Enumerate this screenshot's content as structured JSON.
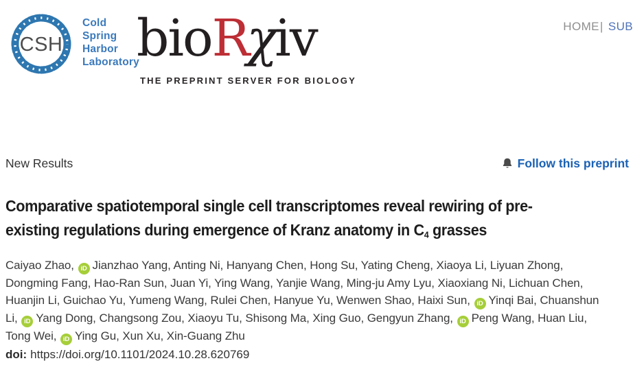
{
  "header": {
    "csh_logo": {
      "monogram": "CSH",
      "label_lines": [
        "Cold",
        "Spring",
        "Harbor",
        "Laboratory"
      ]
    },
    "biorxiv_logo": {
      "bio": "bio",
      "r": "R",
      "chi": "χ",
      "iv": "iv",
      "tagline": "THE PREPRINT SERVER FOR BIOLOGY"
    },
    "nav": {
      "home": "HOME",
      "separator": "|",
      "submit": "SUB"
    }
  },
  "content": {
    "section_label": "New Results",
    "follow": {
      "label": "Follow this preprint",
      "icon": "bell-icon"
    },
    "title": {
      "line1": "Comparative spatiotemporal single cell transcriptomes reveal rewiring of pre-",
      "line2_before_sub": "existing regulations during emergence of Kranz anatomy in C",
      "subscript": "4",
      "line2_after_sub": " grasses"
    },
    "orcid_icon_text": "iD",
    "authors": [
      {
        "name": "Caiyao Zhao",
        "orcid": false
      },
      {
        "name": "Jianzhao Yang",
        "orcid": true
      },
      {
        "name": "Anting Ni",
        "orcid": false
      },
      {
        "name": "Hanyang Chen",
        "orcid": false
      },
      {
        "name": "Hong Su",
        "orcid": false
      },
      {
        "name": "Yating Cheng",
        "orcid": false
      },
      {
        "name": "Xiaoya Li",
        "orcid": false
      },
      {
        "name": "Liyuan Zhong",
        "orcid": false
      },
      {
        "name": "Dongming Fang",
        "orcid": false
      },
      {
        "name": "Hao-Ran Sun",
        "orcid": false
      },
      {
        "name": "Juan Yi",
        "orcid": false
      },
      {
        "name": "Ying Wang",
        "orcid": false
      },
      {
        "name": "Yanjie Wang",
        "orcid": false
      },
      {
        "name": "Ming-ju Amy Lyu",
        "orcid": false
      },
      {
        "name": "Xiaoxiang Ni",
        "orcid": false
      },
      {
        "name": "Lichuan Chen",
        "orcid": false
      },
      {
        "name": "Huanjin Li",
        "orcid": false
      },
      {
        "name": "Guichao Yu",
        "orcid": false
      },
      {
        "name": "Yumeng Wang",
        "orcid": false
      },
      {
        "name": "Rulei Chen",
        "orcid": false
      },
      {
        "name": "Hanyue Yu",
        "orcid": false
      },
      {
        "name": "Wenwen Shao",
        "orcid": false
      },
      {
        "name": "Haixi Sun",
        "orcid": false
      },
      {
        "name": "Yinqi Bai",
        "orcid": true
      },
      {
        "name": "Chuanshun Li",
        "orcid": false
      },
      {
        "name": "Yang Dong",
        "orcid": true
      },
      {
        "name": "Changsong Zou",
        "orcid": false
      },
      {
        "name": "Xiaoyu Tu",
        "orcid": false
      },
      {
        "name": "Shisong Ma",
        "orcid": false
      },
      {
        "name": "Xing Guo",
        "orcid": false
      },
      {
        "name": "Gengyun Zhang",
        "orcid": false
      },
      {
        "name": "Peng Wang",
        "orcid": true
      },
      {
        "name": "Huan Liu",
        "orcid": false
      },
      {
        "name": "Tong Wei",
        "orcid": false
      },
      {
        "name": "Ying Gu",
        "orcid": true
      },
      {
        "name": "Xun Xu",
        "orcid": false
      },
      {
        "name": "Xin-Guang Zhu",
        "orcid": false
      }
    ],
    "doi": {
      "label": "doi:",
      "url": "https://doi.org/10.1101/2024.10.28.620769"
    }
  },
  "icons": {
    "csh": "dna-ring-icon",
    "follow": "bell-icon",
    "orcid": "orcid-id-icon"
  },
  "colors": {
    "csh_blue": "#2e77b0",
    "csh_text_blue": "#3b7abc",
    "biorxiv_red": "#bd2e35",
    "biorxiv_dark": "#231f20",
    "orcid_green": "#a6ce39",
    "follow_link_blue": "#1b62b5",
    "nav_gray": "#8f8f8f",
    "nav_blue": "#4f73b8",
    "body_text": "#3a3a3a"
  }
}
